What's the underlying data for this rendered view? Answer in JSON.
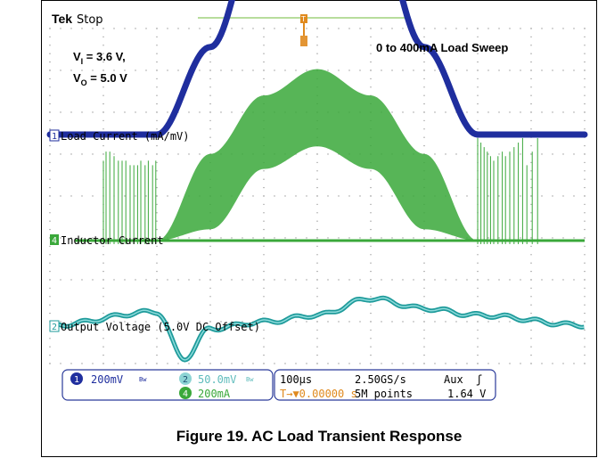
{
  "scope": {
    "brand": "Tek",
    "state": "Stop",
    "cond_vi_main": "V",
    "cond_vi_sub": "I",
    "cond_vi_val": " = 3.6 V,",
    "cond_vo_main": "V",
    "cond_vo_sub": "O",
    "cond_vo_val": " = 5.0 V",
    "sweep_label": "0 to 400mA Load Sweep",
    "trigger_marker": "T",
    "ch1_label": "Load Current (mA/mV)",
    "ch4_label": "Inductor Current",
    "ch2_label": "Output Voltage (5.0V DC Offset)",
    "ch1_num": "1",
    "ch2_num": "2",
    "ch4_num": "4"
  },
  "status": {
    "ch1_num": "1",
    "ch1_scale": "200mV",
    "ch1_bw": "Bw",
    "ch2_num": "2",
    "ch2_scale": "50.0mV",
    "ch2_bw": "Bw",
    "ch4_num": "4",
    "ch4_scale": "200mA",
    "timebase": "100µs",
    "sample_rate": "2.50GS/s",
    "trig_source": "Aux",
    "trig_slope": "ʃ",
    "trig_pos": "T→▼0.00000 s",
    "record_len": "5M points",
    "trig_level": "1.64 V"
  },
  "colors": {
    "ch1": "#1f2e9e",
    "ch4": "#3aa83a",
    "ch2": "#1f9b9b",
    "trigger": "#e08a1e",
    "grid_dot": "#9a9a9a"
  },
  "caption": "Figure 19. AC Load Transient Response",
  "chart_data": {
    "type": "line",
    "title": "Figure 19. AC Load Transient Response",
    "x_axis": {
      "timebase_per_div": "100µs",
      "divisions": 10,
      "range_us": [
        -500,
        500
      ]
    },
    "y_axis": {
      "divisions": 8
    },
    "grid": true,
    "series": [
      {
        "name": "Load Current (mA/mV)",
        "channel": 1,
        "scale_per_div": "200mV",
        "t_us": [
          -500,
          -300,
          -200,
          -100,
          0,
          100,
          200,
          300,
          500
        ],
        "y_div": [
          -0.45,
          -0.45,
          0.5,
          1.95,
          2.45,
          1.95,
          0.5,
          -0.45,
          -0.45
        ]
      },
      {
        "name": "Inductor Current",
        "channel": 4,
        "scale_per_div": "200mA",
        "t_us": [
          -500,
          -300,
          -200,
          -100,
          0,
          100,
          200,
          300,
          500
        ],
        "envelope_upper_div": [
          0,
          0,
          2.3,
          3.85,
          4.55,
          3.85,
          2.3,
          0,
          0
        ],
        "envelope_lower_div": [
          0,
          0,
          0.3,
          1.9,
          2.5,
          1.9,
          0.3,
          0,
          0
        ]
      },
      {
        "name": "Output Voltage (5.0V DC Offset)",
        "channel": 2,
        "scale_per_div": "50.0mV",
        "t_us": [
          -500,
          -300,
          -250,
          -200,
          -100,
          0,
          100,
          200,
          300,
          500
        ],
        "y_div": [
          0.0,
          0.4,
          -1.0,
          -0.1,
          0.1,
          0.3,
          0.8,
          0.5,
          0.3,
          0.0
        ]
      }
    ],
    "annotations": [
      "V_I = 3.6 V,",
      "V_O = 5.0 V",
      "0 to 400mA Load Sweep"
    ],
    "readout": {
      "sample_rate": "2.50GS/s",
      "record_length": "5M points",
      "trigger": "Aux",
      "trigger_level": "1.64 V",
      "trigger_position": "0.00000 s"
    }
  }
}
